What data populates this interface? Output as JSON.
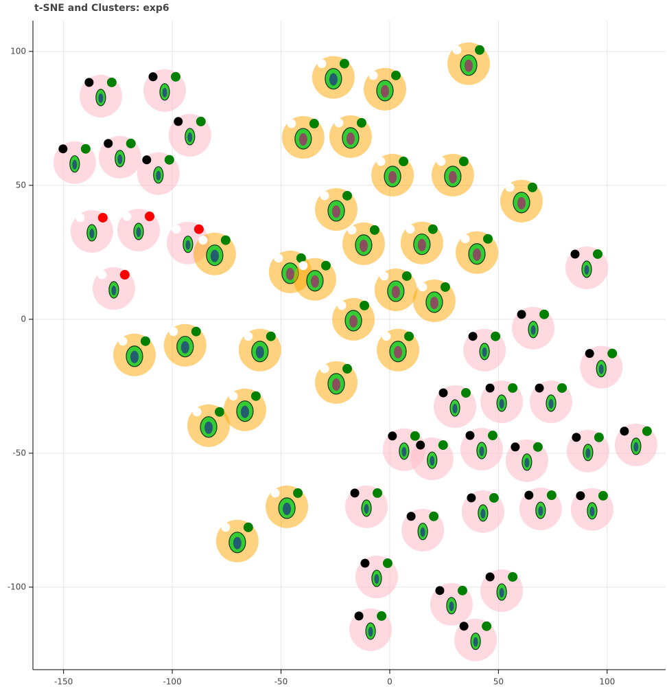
{
  "chart_data": {
    "type": "scatter",
    "title": "t-SNE and Clusters: exp6",
    "x": [
      -132.9,
      -103.5,
      -91.9,
      -144.9,
      -124.1,
      -106.4,
      -137.0,
      -115.5,
      -92.8,
      -126.9,
      -80.5,
      -117.4,
      -94.1,
      -59.7,
      -83.3,
      -66.6,
      -47.3,
      -70.1,
      -25.9,
      -2.2,
      36.3,
      -39.8,
      -18.0,
      1.3,
      29.0,
      60.6,
      -24.6,
      -12.0,
      14.8,
      40.1,
      -45.8,
      -34.4,
      2.8,
      20.5,
      -16.7,
      3.8,
      -24.6,
      90.6,
      66.0,
      43.6,
      97.3,
      30.0,
      51.5,
      74.2,
      6.6,
      19.5,
      42.3,
      63.1,
      91.2,
      113.3,
      -10.7,
      15.2,
      42.9,
      69.4,
      93.1,
      -6.0,
      28.4,
      51.5,
      -8.8,
      39.5
    ],
    "y": [
      83.3,
      85.4,
      68.7,
      58.5,
      60.5,
      54.4,
      32.8,
      33.3,
      28.5,
      11.5,
      24.4,
      -13.3,
      -9.7,
      -11.5,
      -39.7,
      -33.8,
      -70.0,
      -82.8,
      90.3,
      85.9,
      95.4,
      67.9,
      68.2,
      53.8,
      53.8,
      44.1,
      41.0,
      28.2,
      28.5,
      24.9,
      17.7,
      14.9,
      11.0,
      6.9,
      0,
      -11.5,
      -23.6,
      19.2,
      -3.3,
      -11.5,
      -17.9,
      -32.6,
      -30.8,
      -30.8,
      -48.7,
      -52.1,
      -48.5,
      -52.8,
      -49.2,
      -46.9,
      -70.0,
      -78.7,
      -71.8,
      -70.8,
      -71.0,
      -96.2,
      -106.4,
      -101.3,
      -115.9,
      -119.7
    ],
    "colors": [
      "#ffc0cb",
      "#ffc0cb",
      "#ffc0cb",
      "#ffc0cb",
      "#ffc0cb",
      "#ffc0cb",
      "#ffc0cb",
      "#ffc0cb",
      "#ffc0cb",
      "#ffc0cb",
      "#ffa500",
      "#ffa500",
      "#ffa500",
      "#ffa500",
      "#ffa500",
      "#ffa500",
      "#ffa500",
      "#ffa500",
      "#ffa500",
      "#ffa500",
      "#ffa500",
      "#ffa500",
      "#ffa500",
      "#ffa500",
      "#ffa500",
      "#ffa500",
      "#ffa500",
      "#ffa500",
      "#ffa500",
      "#ffa500",
      "#ffa500",
      "#ffa500",
      "#ffa500",
      "#ffa500",
      "#ffa500",
      "#ffa500",
      "#ffa500",
      "#ffc0cb",
      "#ffc0cb",
      "#ffc0cb",
      "#ffc0cb",
      "#ffc0cb",
      "#ffc0cb",
      "#ffc0cb",
      "#ffc0cb",
      "#ffc0cb",
      "#ffc0cb",
      "#ffc0cb",
      "#ffc0cb",
      "#ffc0cb",
      "#ffc0cb",
      "#ffc0cb",
      "#ffc0cb",
      "#ffc0cb",
      "#ffc0cb",
      "#ffc0cb",
      "#ffc0cb",
      "#ffc0cb",
      "#ffc0cb",
      "#ffc0cb"
    ],
    "left_colors": [
      "#000000",
      "#000000",
      "#000000",
      "#000000",
      "#000000",
      "#000000",
      "#ffffff",
      "#ffffff",
      "#ffffff",
      "#ffffff",
      "#ffffff",
      "#ffffff",
      "#ffffff",
      "#ffffff",
      "#ffffff",
      "#ffffff",
      "#ffffff",
      "#ffffff",
      "#ffffff",
      "#ffffff",
      "#ffffff",
      "#ffffff",
      "#ffffff",
      "#ffffff",
      "#ffffff",
      "#ffffff",
      "#ffffff",
      "#ffffff",
      "#ffffff",
      "#ffffff",
      "#ffffff",
      "#ffffff",
      "#ffffff",
      "#ffffff",
      "#ffffff",
      "#ffffff",
      "#ffffff",
      "#000000",
      "#000000",
      "#000000",
      "#000000",
      "#000000",
      "#000000",
      "#000000",
      "#000000",
      "#000000",
      "#000000",
      "#000000",
      "#000000",
      "#000000",
      "#000000",
      "#000000",
      "#000000",
      "#000000",
      "#000000",
      "#000000",
      "#000000",
      "#000000",
      "#000000",
      "#000000"
    ],
    "right_colors": [
      "#008000",
      "#008000",
      "#008000",
      "#008000",
      "#008000",
      "#008000",
      "#ff0000",
      "#ff0000",
      "#ff0000",
      "#ff0000",
      "#008000",
      "#008000",
      "#008000",
      "#008000",
      "#008000",
      "#008000",
      "#008000",
      "#008000",
      "#008000",
      "#008000",
      "#008000",
      "#008000",
      "#008000",
      "#008000",
      "#008000",
      "#008000",
      "#008000",
      "#008000",
      "#008000",
      "#008000",
      "#008000",
      "#008000",
      "#008000",
      "#008000",
      "#008000",
      "#008000",
      "#008000",
      "#008000",
      "#008000",
      "#008000",
      "#008000",
      "#008000",
      "#008000",
      "#008000",
      "#008000",
      "#008000",
      "#008000",
      "#008000",
      "#008000",
      "#008000",
      "#008000",
      "#008000",
      "#008000",
      "#008000",
      "#008000",
      "#008000",
      "#008000",
      "#008000",
      "#008000",
      "#008000"
    ],
    "xlim": [
      -164.1,
      126.9
    ],
    "ylim": [
      -130.8,
      111.5
    ],
    "xticks": [
      -150,
      -100,
      -50,
      0,
      50,
      100
    ],
    "yticks": [
      -100,
      -50,
      0,
      50,
      100
    ],
    "grid": true
  }
}
